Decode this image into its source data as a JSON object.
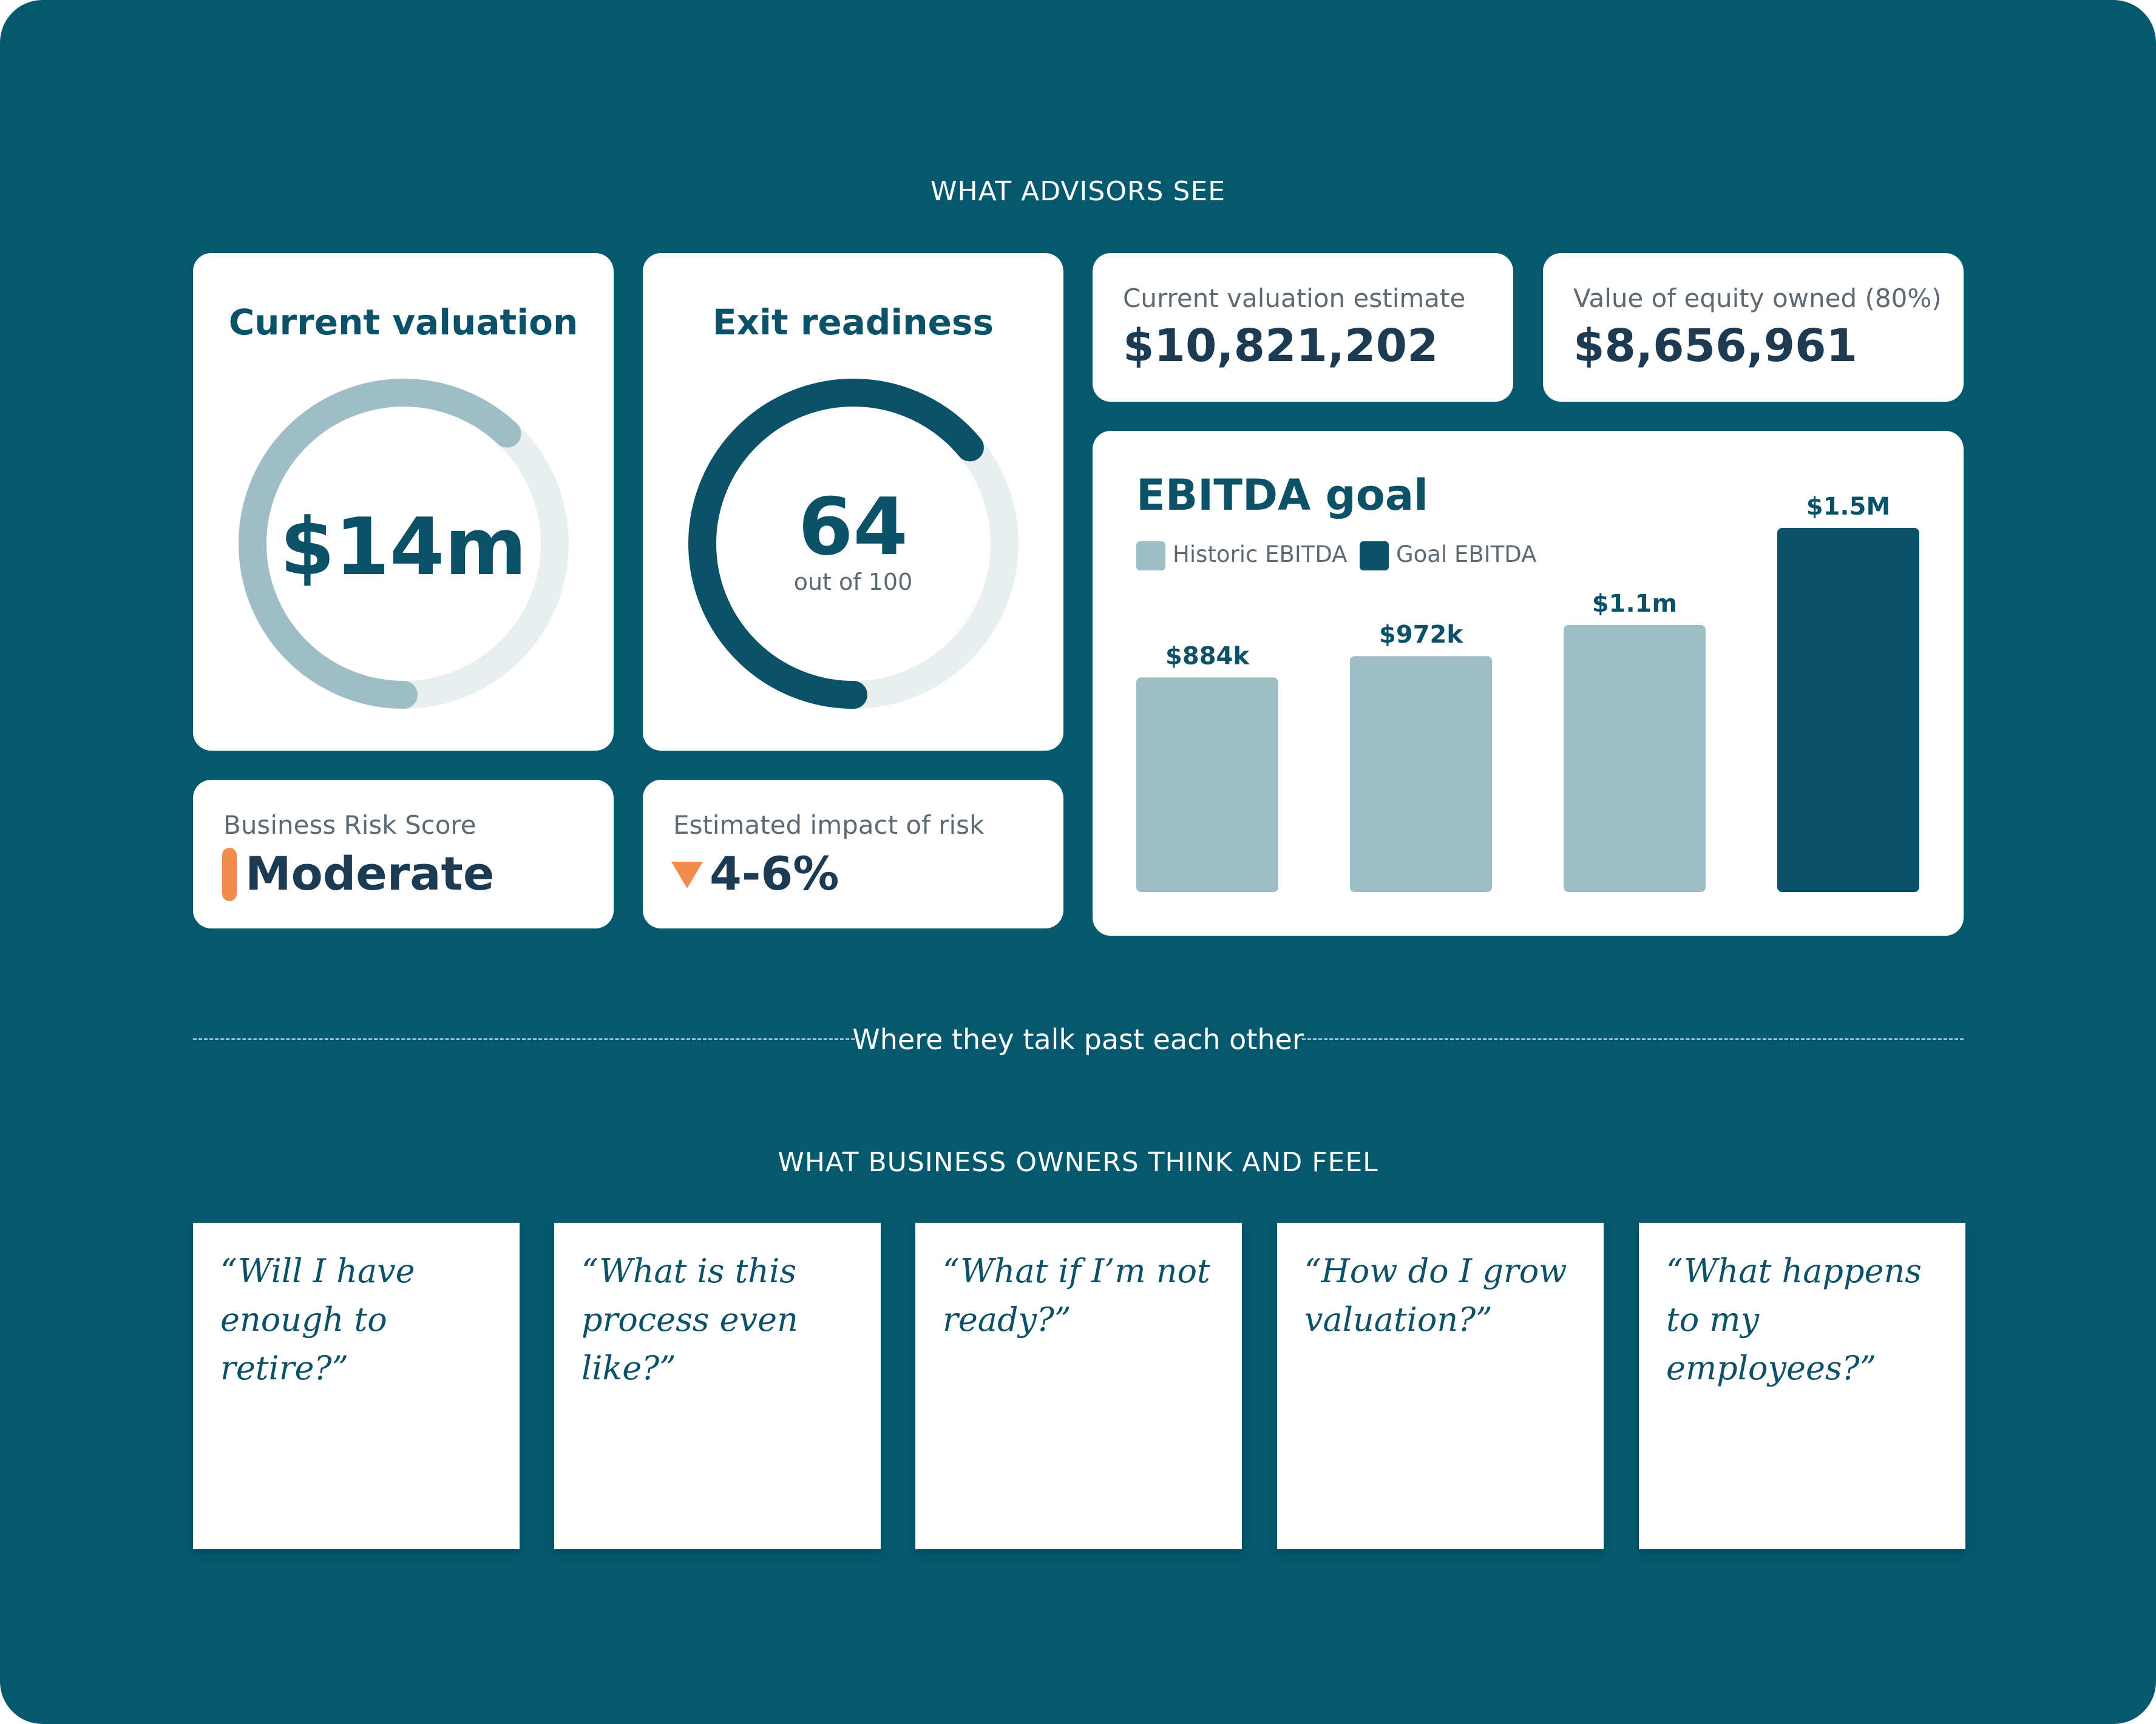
{
  "advisors_section": {
    "label": "WHAT ADVISORS SEE"
  },
  "valuation_card": {
    "title": "Current valuation",
    "value": "$14m",
    "ring_fraction": 0.62
  },
  "exit_card": {
    "title": "Exit readiness",
    "score": "64",
    "subtitle": "out of 100",
    "score_value": 64,
    "score_max": 100
  },
  "estimate_card": {
    "label": "Current valuation estimate",
    "value": "$10,821,202"
  },
  "equity_card": {
    "label": "Value of equity owned (80%)",
    "value": "$8,656,961"
  },
  "risk_card": {
    "label": "Business Risk Score",
    "value": "Moderate"
  },
  "impact_card": {
    "label": "Estimated impact of risk",
    "value": "4-6%"
  },
  "chart_data": {
    "type": "bar",
    "title": "EBITDA goal",
    "series": [
      {
        "name": "Historic EBITDA",
        "color": "#9ebdc7"
      },
      {
        "name": "Goal EBITDA",
        "color": "#0b5168"
      }
    ],
    "bars": [
      {
        "label": "$884k",
        "value": 884,
        "series": "Historic EBITDA"
      },
      {
        "label": "$972k",
        "value": 972,
        "series": "Historic EBITDA"
      },
      {
        "label": "$1.1m",
        "value": 1100,
        "series": "Historic EBITDA"
      },
      {
        "label": "$1.5M",
        "value": 1500,
        "series": "Goal EBITDA"
      }
    ],
    "ylim": [
      0,
      1500
    ],
    "unit": "thousands USD"
  },
  "divider": {
    "label": "Where they talk past each other"
  },
  "owners_section": {
    "label": "WHAT BUSINESS OWNERS THINK AND FEEL",
    "notes": [
      "“Will I have enough to retire?”",
      "“What is this process even like?”",
      "“What if I’m not ready?”",
      "“How do I grow valuation?”",
      "“What happens to my employees?”"
    ]
  },
  "colors": {
    "background": "#04596f",
    "primary": "#0b5168",
    "light": "#9ebdc7",
    "track": "#e9eeef",
    "risk_accent": "#f28b4b"
  }
}
